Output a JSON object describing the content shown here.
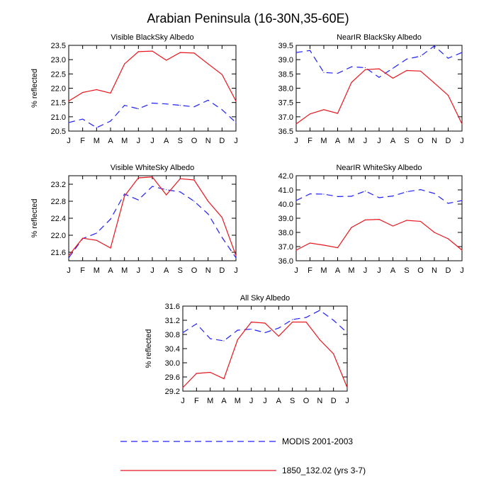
{
  "title": "Arabian Peninsula (16-30N,35-60E)",
  "months": [
    "J",
    "F",
    "M",
    "A",
    "M",
    "J",
    "J",
    "A",
    "S",
    "O",
    "N",
    "D",
    "J"
  ],
  "legend": [
    {
      "label": "MODIS 2001-2003",
      "color": "#2020ff",
      "style": "dashed"
    },
    {
      "label": "1850_132.02 (yrs 3-7)",
      "color": "#e8171e",
      "style": "solid"
    }
  ],
  "chart_data": [
    {
      "type": "line",
      "title": "Visible BlackSky Albedo",
      "ylabel": "% reflected",
      "ylim": [
        20.5,
        23.5
      ],
      "yticks": [
        "20.5",
        "21.0",
        "21.5",
        "22.0",
        "22.5",
        "23.0",
        "23.5"
      ],
      "series": [
        {
          "name": "MODIS 2001-2003",
          "values": [
            20.8,
            20.92,
            20.62,
            20.85,
            21.4,
            21.28,
            21.48,
            21.45,
            21.4,
            21.35,
            21.58,
            21.25,
            20.8
          ]
        },
        {
          "name": "1850_132.02 (yrs 3-7)",
          "values": [
            21.55,
            21.85,
            21.95,
            21.83,
            22.85,
            23.28,
            23.3,
            22.98,
            23.25,
            23.23,
            22.85,
            22.48,
            21.55
          ]
        }
      ]
    },
    {
      "type": "line",
      "title": "NearIR BlackSky Albedo",
      "ylabel": "",
      "ylim": [
        36.5,
        39.5
      ],
      "yticks": [
        "36.5",
        "37.0",
        "37.5",
        "38.0",
        "38.5",
        "39.0",
        "39.5"
      ],
      "series": [
        {
          "name": "MODIS 2001-2003",
          "values": [
            39.25,
            39.32,
            38.55,
            38.52,
            38.75,
            38.72,
            38.38,
            38.7,
            39.02,
            39.12,
            39.48,
            39.05,
            39.25
          ]
        },
        {
          "name": "1850_132.02 (yrs 3-7)",
          "values": [
            36.75,
            37.1,
            37.25,
            37.12,
            38.2,
            38.65,
            38.68,
            38.35,
            38.62,
            38.6,
            38.18,
            37.75,
            36.75
          ]
        }
      ]
    },
    {
      "type": "line",
      "title": "Visible WhiteSky Albedo",
      "ylabel": "% reflected",
      "ylim": [
        21.4,
        23.4
      ],
      "yticks": [
        "21.6",
        "22.0",
        "22.4",
        "22.8",
        "23.2"
      ],
      "series": [
        {
          "name": "MODIS 2001-2003",
          "values": [
            21.47,
            21.92,
            22.05,
            22.38,
            22.97,
            22.83,
            23.15,
            23.07,
            23.02,
            22.8,
            22.5,
            21.95,
            21.47
          ]
        },
        {
          "name": "1850_132.02 (yrs 3-7)",
          "values": [
            21.52,
            21.93,
            21.88,
            21.7,
            22.92,
            23.35,
            23.37,
            22.95,
            23.33,
            23.3,
            22.8,
            22.42,
            21.52
          ]
        }
      ]
    },
    {
      "type": "line",
      "title": "NearIR WhiteSky Albedo",
      "ylabel": "",
      "ylim": [
        36.0,
        42.0
      ],
      "yticks": [
        "36.0",
        "37.0",
        "38.0",
        "39.0",
        "40.0",
        "41.0",
        "42.0"
      ],
      "series": [
        {
          "name": "MODIS 2001-2003",
          "values": [
            40.25,
            40.72,
            40.7,
            40.53,
            40.55,
            40.92,
            40.45,
            40.57,
            40.87,
            41.02,
            40.75,
            40.05,
            40.25
          ]
        },
        {
          "name": "1850_132.02 (yrs 3-7)",
          "values": [
            36.75,
            37.25,
            37.1,
            36.92,
            38.35,
            38.88,
            38.92,
            38.45,
            38.85,
            38.78,
            38.0,
            37.55,
            36.75
          ]
        }
      ]
    },
    {
      "type": "line",
      "title": "All Sky Albedo",
      "ylabel": "% reflected",
      "ylim": [
        29.2,
        31.6
      ],
      "yticks": [
        "29.2",
        "29.6",
        "30.0",
        "30.4",
        "30.8",
        "31.2",
        "31.6"
      ],
      "series": [
        {
          "name": "MODIS 2001-2003",
          "values": [
            30.85,
            31.1,
            30.68,
            30.62,
            30.92,
            30.95,
            30.85,
            30.98,
            31.22,
            31.28,
            31.48,
            31.2,
            30.85
          ]
        },
        {
          "name": "1850_132.02 (yrs 3-7)",
          "values": [
            29.3,
            29.7,
            29.73,
            29.55,
            30.65,
            31.15,
            31.12,
            30.75,
            31.15,
            31.15,
            30.65,
            30.25,
            29.3
          ]
        }
      ]
    }
  ]
}
